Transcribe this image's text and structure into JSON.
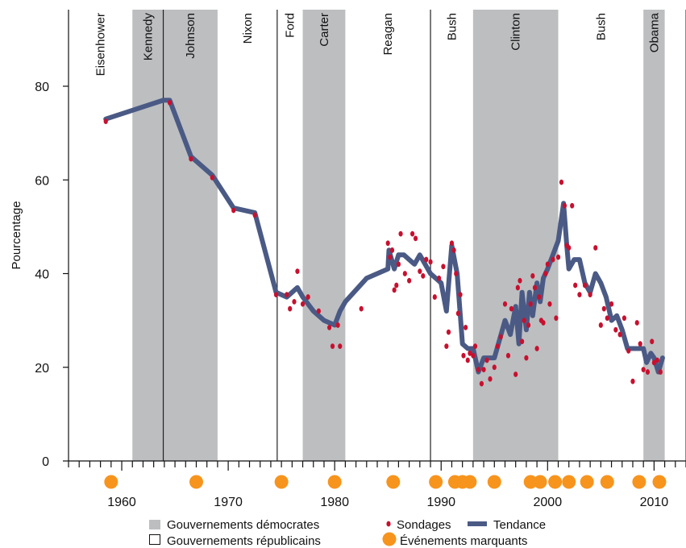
{
  "chart_data": {
    "type": "line",
    "ylabel": "Pourcentage",
    "xlim": [
      1955,
      2013
    ],
    "ylim": [
      0,
      80
    ],
    "y_ticks": [
      0,
      20,
      40,
      60,
      80
    ],
    "x_ticks": [
      1960,
      1970,
      1980,
      1990,
      2000,
      2010
    ],
    "grid": false,
    "legend_position": "bottom",
    "colors": {
      "democrat_band": "#bcbec0",
      "polls": "#c8102e",
      "trend": "#4a5a85",
      "events": "#f7941d",
      "divider": "#222222"
    },
    "presidents": [
      {
        "name": "Eisenhower",
        "start": 1955,
        "end": 1961,
        "party": "R"
      },
      {
        "name": "Kennedy",
        "start": 1961,
        "end": 1963.9,
        "party": "D"
      },
      {
        "name": "Johnson",
        "start": 1963.9,
        "end": 1969,
        "party": "D"
      },
      {
        "name": "Nixon",
        "start": 1969,
        "end": 1974.6,
        "party": "R"
      },
      {
        "name": "Ford",
        "start": 1974.6,
        "end": 1977,
        "party": "R"
      },
      {
        "name": "Carter",
        "start": 1977,
        "end": 1981,
        "party": "D"
      },
      {
        "name": "Reagan",
        "start": 1981,
        "end": 1989,
        "party": "R"
      },
      {
        "name": "Bush",
        "start": 1989,
        "end": 1993,
        "party": "R"
      },
      {
        "name": "Clinton",
        "start": 1993,
        "end": 2001,
        "party": "D"
      },
      {
        "name": "Bush",
        "start": 2001,
        "end": 2009,
        "party": "R"
      },
      {
        "name": "Obama",
        "start": 2009,
        "end": 2011,
        "party": "D"
      }
    ],
    "dividers": [
      1963.9,
      1974.6,
      1989
    ],
    "series": [
      {
        "name": "Tendance",
        "x": [
          1958.5,
          1963.9,
          1964.5,
          1966.5,
          1968.5,
          1970.5,
          1972.5,
          1974.5,
          1975.5,
          1976.5,
          1977,
          1978,
          1979,
          1980,
          1980.5,
          1981,
          1983,
          1985,
          1985.1,
          1985.6,
          1986,
          1986.5,
          1987.5,
          1988,
          1988.5,
          1989,
          1989.5,
          1990,
          1990.5,
          1991,
          1991.5,
          1992,
          1992.5,
          1993,
          1993.5,
          1994,
          1994.5,
          1995,
          1995.5,
          1996,
          1996.5,
          1997,
          1997.3,
          1997.6,
          1998,
          1998.3,
          1998.6,
          1999,
          1999.3,
          1999.6,
          2000,
          2000.5,
          2001,
          2001.5,
          2001.8,
          2002,
          2002.5,
          2003,
          2003.5,
          2004,
          2004.5,
          2005,
          2005.5,
          2006,
          2006.5,
          2007,
          2007.5,
          2008,
          2008.5,
          2009,
          2009.3,
          2009.7,
          2010,
          2010.4,
          2010.8
        ],
        "values": [
          73,
          77,
          77,
          65,
          61,
          54,
          53,
          36,
          35,
          37,
          35,
          32,
          30,
          29,
          32,
          34,
          39,
          41,
          45,
          41,
          44,
          44,
          42,
          44,
          42,
          40,
          39,
          38,
          32,
          46,
          40,
          25,
          24,
          24,
          19,
          22,
          22,
          22,
          26,
          30,
          27,
          33,
          25,
          36,
          28,
          36,
          31,
          38,
          34,
          39,
          41,
          44,
          47,
          55,
          46,
          41,
          43,
          43,
          38,
          36,
          40,
          38,
          35,
          30,
          31,
          28,
          24,
          24,
          24,
          24,
          21,
          23,
          22,
          19,
          22
        ]
      },
      {
        "name": "Sondages",
        "x": [
          1958.5,
          1964.5,
          1966.5,
          1968.5,
          1970.5,
          1972.5,
          1974.5,
          1975.5,
          1975.8,
          1976.2,
          1976.5,
          1977,
          1977.5,
          1978.5,
          1979.5,
          1979.8,
          1980.3,
          1980.5,
          1982.5,
          1985,
          1985.2,
          1985.4,
          1985.6,
          1985.8,
          1986,
          1986.2,
          1986.6,
          1987,
          1987.3,
          1987.6,
          1988,
          1988.3,
          1988.6,
          1989,
          1989.4,
          1989.8,
          1990.2,
          1990.5,
          1990.7,
          1991,
          1991.2,
          1991.4,
          1991.6,
          1991.8,
          1992.1,
          1992.3,
          1992.5,
          1992.7,
          1993,
          1993.2,
          1993.5,
          1993.8,
          1994,
          1994.3,
          1994.6,
          1995,
          1995.3,
          1995.6,
          1996,
          1996.3,
          1996.6,
          1997,
          1997.2,
          1997.4,
          1997.6,
          1997.8,
          1998,
          1998.2,
          1998.4,
          1998.6,
          1998.8,
          1999,
          1999.2,
          1999.4,
          1999.6,
          1999.8,
          2000,
          2000.2,
          2000.5,
          2000.8,
          2001,
          2001.3,
          2001.6,
          2001.8,
          2002,
          2002.3,
          2002.6,
          2003,
          2003.5,
          2004,
          2004.5,
          2005,
          2005.3,
          2005.6,
          2006,
          2006.4,
          2006.8,
          2007.2,
          2007.6,
          2008,
          2008.4,
          2008.7,
          2009,
          2009.4,
          2009.8,
          2010,
          2010.3,
          2010.6
        ],
        "values": [
          72.5,
          76.5,
          64.5,
          60.5,
          53.5,
          52.5,
          35.5,
          35.5,
          32.5,
          34,
          40.5,
          33.5,
          35,
          32,
          28.5,
          24.5,
          29,
          24.5,
          32.5,
          46.5,
          43.5,
          45,
          36.5,
          37.5,
          42,
          48.5,
          40,
          38.5,
          48.5,
          47.5,
          40.5,
          39.5,
          43,
          42.5,
          35,
          39,
          41.5,
          24.5,
          27.5,
          46.5,
          45,
          40,
          31.5,
          35.5,
          22.5,
          28.5,
          21.5,
          23,
          22.5,
          24.5,
          19.5,
          16.5,
          19.5,
          21.5,
          17.5,
          20,
          24.5,
          26.5,
          33.5,
          22.5,
          32.5,
          18.5,
          37,
          38.5,
          25.5,
          30,
          22,
          29,
          33.5,
          39.5,
          37,
          24,
          35,
          30,
          29.5,
          40,
          42,
          33.5,
          43,
          30.5,
          43.5,
          59.5,
          54.5,
          46,
          45.5,
          54.5,
          37.5,
          35.5,
          37.5,
          35.5,
          45.5,
          29,
          32.5,
          30.5,
          33.5,
          28,
          27,
          30.5,
          23.5,
          17,
          29.5,
          25,
          19.5,
          19,
          25.5,
          21,
          21.5,
          19
        ]
      }
    ],
    "events": [
      1959,
      1967,
      1975,
      1980,
      1985.5,
      1989.5,
      1991.3,
      1992,
      1992.7,
      1995,
      1998.4,
      1999.3,
      2000.7,
      2002,
      2003.7,
      2005.6,
      2008.6,
      2010.5
    ],
    "legend": [
      {
        "label": "Gouvernements démocrates",
        "symbol": "band-swatch"
      },
      {
        "label": "Sondages",
        "symbol": "poll-dot"
      },
      {
        "label": "Tendance",
        "symbol": "trend-line"
      },
      {
        "label": "Gouvernements républicains",
        "symbol": "empty-box"
      },
      {
        "label": "Événements marquants",
        "symbol": "event-circle"
      }
    ]
  }
}
